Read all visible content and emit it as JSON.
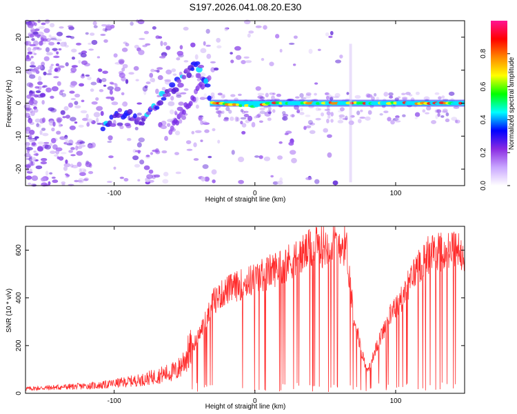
{
  "title": "S197.2026.041.08.20.E30",
  "chart_data": [
    {
      "type": "heatmap",
      "xlabel": "Height of straight line (km)",
      "ylabel": "Frequency (Hz)",
      "xlim": [
        -163,
        149
      ],
      "ylim": [
        -25,
        25
      ],
      "xticks": [
        -100,
        0,
        100
      ],
      "yticks": [
        -20,
        -10,
        0,
        10,
        20
      ],
      "colorbar": {
        "label": "Normalized spectral amplitude",
        "range": [
          0.0,
          1.0
        ],
        "ticks": [
          "0.0",
          "0.2",
          "0.4",
          "0.6",
          "0.8"
        ],
        "colors": [
          "#ffffff",
          "#c9a6ff",
          "#8a2be2",
          "#0000ff",
          "#00ffff",
          "#00ff00",
          "#ffff00",
          "#ff8800",
          "#ff0000",
          "#ff1493"
        ]
      },
      "ridge": [
        {
          "x": -108,
          "y": -8
        },
        {
          "x": -95,
          "y": -3
        },
        {
          "x": -80,
          "y": -5
        },
        {
          "x": -65,
          "y": 2
        },
        {
          "x": -50,
          "y": 8
        },
        {
          "x": -40,
          "y": 12
        },
        {
          "x": -30,
          "y": 0
        },
        {
          "x": 0,
          "y": -1
        },
        {
          "x": 10,
          "y": 0
        },
        {
          "x": 149,
          "y": 0
        }
      ]
    },
    {
      "type": "line",
      "xlabel": "Height of straight line (km)",
      "ylabel": "SNR (10 * v/v)",
      "xlim": [
        -163,
        149
      ],
      "ylim": [
        0,
        700
      ],
      "xticks": [
        -100,
        0,
        100
      ],
      "yticks": [
        0,
        200,
        400,
        600
      ],
      "color": "#ff2a2a",
      "envelope": [
        {
          "x": -163,
          "y": 20
        },
        {
          "x": -110,
          "y": 35
        },
        {
          "x": -80,
          "y": 60
        },
        {
          "x": -55,
          "y": 100
        },
        {
          "x": -40,
          "y": 250
        },
        {
          "x": -30,
          "y": 400
        },
        {
          "x": -20,
          "y": 450
        },
        {
          "x": 0,
          "y": 500
        },
        {
          "x": 20,
          "y": 560
        },
        {
          "x": 40,
          "y": 630
        },
        {
          "x": 60,
          "y": 660
        },
        {
          "x": 65,
          "y": 640
        },
        {
          "x": 70,
          "y": 350
        },
        {
          "x": 75,
          "y": 200
        },
        {
          "x": 80,
          "y": 90
        },
        {
          "x": 85,
          "y": 180
        },
        {
          "x": 95,
          "y": 330
        },
        {
          "x": 105,
          "y": 420
        },
        {
          "x": 115,
          "y": 550
        },
        {
          "x": 125,
          "y": 620
        },
        {
          "x": 149,
          "y": 620
        }
      ]
    }
  ]
}
